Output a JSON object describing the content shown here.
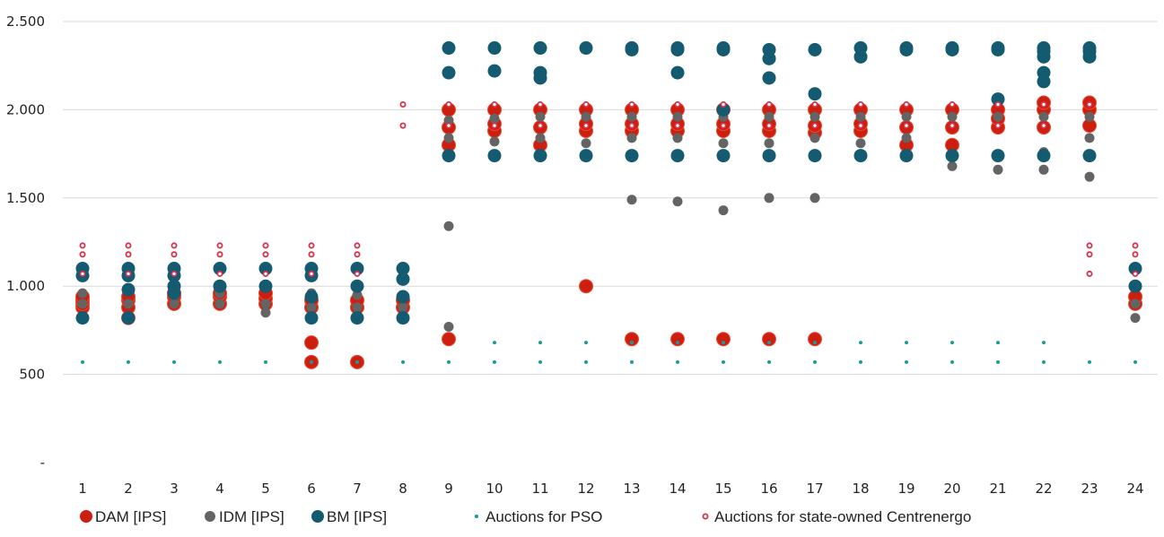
{
  "chart_data": {
    "type": "scatter",
    "title": "",
    "xlabel": "",
    "ylabel": "",
    "ylim": [
      0,
      2500
    ],
    "yticks": [
      {
        "value": 0,
        "label": "-"
      },
      {
        "value": 500,
        "label": "500"
      },
      {
        "value": 1000,
        "label": "1.000"
      },
      {
        "value": 1500,
        "label": "1.500"
      },
      {
        "value": 2000,
        "label": "2.000"
      },
      {
        "value": 2500,
        "label": "2.500"
      }
    ],
    "x_categories": [
      "1",
      "2",
      "3",
      "4",
      "5",
      "6",
      "7",
      "8",
      "9",
      "10",
      "11",
      "12",
      "13",
      "14",
      "15",
      "16",
      "17",
      "18",
      "19",
      "20",
      "21",
      "22",
      "23",
      "24"
    ],
    "grid": true,
    "legend_position": "bottom",
    "series": [
      {
        "name": "DAM [IPS]",
        "marker": "large-dot",
        "color": "#cc1f10",
        "points": [
          [
            1,
            880
          ],
          [
            1,
            900
          ],
          [
            1,
            920
          ],
          [
            1,
            940
          ],
          [
            2,
            820
          ],
          [
            2,
            880
          ],
          [
            2,
            920
          ],
          [
            2,
            940
          ],
          [
            3,
            900
          ],
          [
            3,
            940
          ],
          [
            3,
            960
          ],
          [
            4,
            900
          ],
          [
            4,
            940
          ],
          [
            4,
            960
          ],
          [
            5,
            900
          ],
          [
            5,
            930
          ],
          [
            5,
            960
          ],
          [
            6,
            570
          ],
          [
            6,
            680
          ],
          [
            6,
            880
          ],
          [
            6,
            920
          ],
          [
            7,
            570
          ],
          [
            7,
            880
          ],
          [
            7,
            920
          ],
          [
            8,
            880
          ],
          [
            8,
            920
          ],
          [
            9,
            700
          ],
          [
            9,
            1800
          ],
          [
            9,
            1900
          ],
          [
            9,
            2000
          ],
          [
            10,
            1880
          ],
          [
            10,
            1920
          ],
          [
            10,
            2000
          ],
          [
            11,
            1800
          ],
          [
            11,
            1900
          ],
          [
            11,
            2000
          ],
          [
            12,
            1000
          ],
          [
            12,
            1880
          ],
          [
            12,
            1920
          ],
          [
            12,
            2000
          ],
          [
            13,
            700
          ],
          [
            13,
            1880
          ],
          [
            13,
            1920
          ],
          [
            13,
            2000
          ],
          [
            14,
            700
          ],
          [
            14,
            1880
          ],
          [
            14,
            1920
          ],
          [
            14,
            2000
          ],
          [
            15,
            700
          ],
          [
            15,
            1880
          ],
          [
            15,
            1920
          ],
          [
            15,
            2000
          ],
          [
            16,
            700
          ],
          [
            16,
            1880
          ],
          [
            16,
            1920
          ],
          [
            16,
            2000
          ],
          [
            17,
            700
          ],
          [
            17,
            1870
          ],
          [
            17,
            1910
          ],
          [
            17,
            2000
          ],
          [
            18,
            1880
          ],
          [
            18,
            1920
          ],
          [
            18,
            2000
          ],
          [
            19,
            1800
          ],
          [
            19,
            1900
          ],
          [
            19,
            2000
          ],
          [
            20,
            1800
          ],
          [
            20,
            1900
          ],
          [
            20,
            2000
          ],
          [
            21,
            1900
          ],
          [
            21,
            1950
          ],
          [
            21,
            2000
          ],
          [
            22,
            1900
          ],
          [
            22,
            2000
          ],
          [
            22,
            2040
          ],
          [
            23,
            1910
          ],
          [
            23,
            2000
          ],
          [
            23,
            2040
          ],
          [
            24,
            900
          ],
          [
            24,
            940
          ]
        ]
      },
      {
        "name": "IDM [IPS]",
        "marker": "medium-dot",
        "color": "#646464",
        "points": [
          [
            1,
            900
          ],
          [
            1,
            960
          ],
          [
            2,
            820
          ],
          [
            2,
            900
          ],
          [
            3,
            900
          ],
          [
            3,
            970
          ],
          [
            4,
            900
          ],
          [
            4,
            960
          ],
          [
            5,
            850
          ],
          [
            5,
            900
          ],
          [
            6,
            880
          ],
          [
            6,
            960
          ],
          [
            7,
            880
          ],
          [
            7,
            950
          ],
          [
            8,
            880
          ],
          [
            8,
            940
          ],
          [
            9,
            770
          ],
          [
            9,
            1340
          ],
          [
            9,
            1840
          ],
          [
            9,
            1940
          ],
          [
            10,
            1820
          ],
          [
            10,
            1950
          ],
          [
            11,
            1840
          ],
          [
            11,
            1960
          ],
          [
            12,
            1810
          ],
          [
            12,
            1960
          ],
          [
            13,
            1490
          ],
          [
            13,
            1840
          ],
          [
            13,
            1960
          ],
          [
            14,
            1480
          ],
          [
            14,
            1840
          ],
          [
            14,
            1960
          ],
          [
            15,
            1430
          ],
          [
            15,
            1810
          ],
          [
            15,
            1960
          ],
          [
            16,
            1500
          ],
          [
            16,
            1810
          ],
          [
            16,
            1960
          ],
          [
            17,
            1500
          ],
          [
            17,
            1840
          ],
          [
            17,
            1960
          ],
          [
            18,
            1810
          ],
          [
            18,
            1960
          ],
          [
            19,
            1840
          ],
          [
            19,
            1960
          ],
          [
            20,
            1680
          ],
          [
            20,
            1740
          ],
          [
            20,
            1960
          ],
          [
            21,
            1660
          ],
          [
            21,
            1740
          ],
          [
            21,
            1960
          ],
          [
            22,
            1660
          ],
          [
            22,
            1740
          ],
          [
            22,
            1760
          ],
          [
            22,
            1960
          ],
          [
            23,
            1620
          ],
          [
            23,
            1840
          ],
          [
            23,
            1960
          ],
          [
            24,
            820
          ],
          [
            24,
            900
          ]
        ]
      },
      {
        "name": "BM [IPS]",
        "marker": "large-dot",
        "color": "#145a70",
        "points": [
          [
            1,
            820
          ],
          [
            1,
            1060
          ],
          [
            1,
            1100
          ],
          [
            2,
            820
          ],
          [
            2,
            980
          ],
          [
            2,
            1060
          ],
          [
            2,
            1100
          ],
          [
            3,
            960
          ],
          [
            3,
            1000
          ],
          [
            3,
            1060
          ],
          [
            3,
            1100
          ],
          [
            4,
            1000
          ],
          [
            4,
            1100
          ],
          [
            5,
            1000
          ],
          [
            5,
            1100
          ],
          [
            6,
            820
          ],
          [
            6,
            940
          ],
          [
            6,
            1060
          ],
          [
            6,
            1100
          ],
          [
            7,
            820
          ],
          [
            7,
            1000
          ],
          [
            7,
            1100
          ],
          [
            8,
            820
          ],
          [
            8,
            940
          ],
          [
            8,
            1040
          ],
          [
            8,
            1100
          ],
          [
            9,
            1740
          ],
          [
            9,
            2210
          ],
          [
            9,
            2350
          ],
          [
            10,
            1740
          ],
          [
            10,
            2220
          ],
          [
            10,
            2350
          ],
          [
            11,
            1740
          ],
          [
            11,
            2180
          ],
          [
            11,
            2210
          ],
          [
            11,
            2350
          ],
          [
            12,
            1740
          ],
          [
            12,
            2350
          ],
          [
            13,
            1740
          ],
          [
            13,
            2340
          ],
          [
            13,
            2350
          ],
          [
            14,
            1740
          ],
          [
            14,
            2210
          ],
          [
            14,
            2340
          ],
          [
            14,
            2350
          ],
          [
            15,
            1740
          ],
          [
            15,
            2000
          ],
          [
            15,
            2340
          ],
          [
            15,
            2350
          ],
          [
            16,
            1740
          ],
          [
            16,
            2180
          ],
          [
            16,
            2290
          ],
          [
            16,
            2340
          ],
          [
            17,
            1740
          ],
          [
            17,
            2090
          ],
          [
            17,
            2340
          ],
          [
            18,
            1740
          ],
          [
            18,
            2300
          ],
          [
            18,
            2350
          ],
          [
            19,
            1740
          ],
          [
            19,
            2340
          ],
          [
            19,
            2350
          ],
          [
            20,
            1740
          ],
          [
            20,
            2340
          ],
          [
            20,
            2350
          ],
          [
            21,
            1740
          ],
          [
            21,
            2060
          ],
          [
            21,
            2340
          ],
          [
            21,
            2350
          ],
          [
            22,
            1740
          ],
          [
            22,
            2160
          ],
          [
            22,
            2210
          ],
          [
            22,
            2300
          ],
          [
            22,
            2330
          ],
          [
            22,
            2350
          ],
          [
            23,
            1740
          ],
          [
            23,
            2300
          ],
          [
            23,
            2330
          ],
          [
            23,
            2350
          ],
          [
            24,
            1000
          ],
          [
            24,
            1100
          ]
        ]
      },
      {
        "name": "Auctions for PSO",
        "marker": "small-dot",
        "color": "#1a9a9a",
        "points": [
          [
            1,
            570
          ],
          [
            2,
            570
          ],
          [
            3,
            570
          ],
          [
            4,
            570
          ],
          [
            5,
            570
          ],
          [
            6,
            570
          ],
          [
            7,
            570
          ],
          [
            8,
            570
          ],
          [
            9,
            570
          ],
          [
            10,
            570
          ],
          [
            10,
            680
          ],
          [
            11,
            570
          ],
          [
            11,
            680
          ],
          [
            12,
            570
          ],
          [
            12,
            680
          ],
          [
            13,
            570
          ],
          [
            13,
            680
          ],
          [
            14,
            570
          ],
          [
            14,
            680
          ],
          [
            15,
            570
          ],
          [
            15,
            680
          ],
          [
            16,
            570
          ],
          [
            16,
            680
          ],
          [
            17,
            570
          ],
          [
            17,
            680
          ],
          [
            18,
            570
          ],
          [
            18,
            680
          ],
          [
            19,
            570
          ],
          [
            19,
            680
          ],
          [
            20,
            570
          ],
          [
            20,
            680
          ],
          [
            21,
            570
          ],
          [
            21,
            680
          ],
          [
            22,
            570
          ],
          [
            22,
            680
          ],
          [
            23,
            570
          ],
          [
            24,
            570
          ]
        ]
      },
      {
        "name": "Auctions for state-owned Centrenergo",
        "marker": "ring",
        "color": "#d6304a",
        "points": [
          [
            1,
            1070
          ],
          [
            1,
            1180
          ],
          [
            1,
            1230
          ],
          [
            2,
            1070
          ],
          [
            2,
            1180
          ],
          [
            2,
            1230
          ],
          [
            3,
            1070
          ],
          [
            3,
            1180
          ],
          [
            3,
            1230
          ],
          [
            4,
            1070
          ],
          [
            4,
            1180
          ],
          [
            4,
            1230
          ],
          [
            5,
            1070
          ],
          [
            5,
            1180
          ],
          [
            5,
            1230
          ],
          [
            6,
            1070
          ],
          [
            6,
            1180
          ],
          [
            6,
            1230
          ],
          [
            7,
            1070
          ],
          [
            7,
            1180
          ],
          [
            7,
            1230
          ],
          [
            8,
            1910
          ],
          [
            8,
            2030
          ],
          [
            9,
            1910
          ],
          [
            9,
            2030
          ],
          [
            10,
            1910
          ],
          [
            10,
            2030
          ],
          [
            11,
            1910
          ],
          [
            11,
            2030
          ],
          [
            12,
            1910
          ],
          [
            12,
            2030
          ],
          [
            13,
            1910
          ],
          [
            13,
            2030
          ],
          [
            14,
            1910
          ],
          [
            14,
            2030
          ],
          [
            15,
            1910
          ],
          [
            15,
            2030
          ],
          [
            16,
            1910
          ],
          [
            16,
            2030
          ],
          [
            17,
            1910
          ],
          [
            17,
            2030
          ],
          [
            18,
            1910
          ],
          [
            18,
            2030
          ],
          [
            19,
            1910
          ],
          [
            19,
            2030
          ],
          [
            20,
            1910
          ],
          [
            20,
            2030
          ],
          [
            21,
            1910
          ],
          [
            21,
            2030
          ],
          [
            22,
            1910
          ],
          [
            22,
            2030
          ],
          [
            23,
            2030
          ],
          [
            23,
            1070
          ],
          [
            23,
            1180
          ],
          [
            23,
            1230
          ],
          [
            24,
            1070
          ],
          [
            24,
            1180
          ],
          [
            24,
            1230
          ]
        ]
      }
    ]
  }
}
